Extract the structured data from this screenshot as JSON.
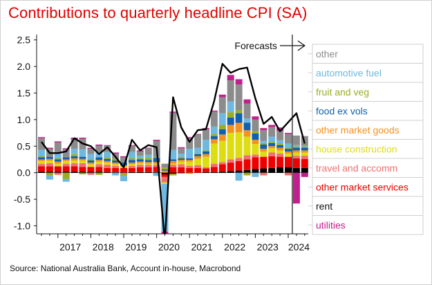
{
  "title": "Contributions to quarterly headline CPI (SA)",
  "source": "Source: National Australia Bank, Account in-house, Macrobond",
  "chart_data": {
    "type": "bar",
    "stacked": true,
    "title": "Contributions to quarterly headline CPI (SA)",
    "xlabel": "",
    "ylabel": "",
    "ylim": [
      -1.15,
      2.6
    ],
    "yticks": [
      "2.5",
      "2.0",
      "1.5",
      "1.0",
      "0.5",
      "0.0",
      "-0.5",
      "-1.0"
    ],
    "ytick_values": [
      2.5,
      2.0,
      1.5,
      1.0,
      0.5,
      0.0,
      -0.5,
      -1.0
    ],
    "year_labels": [
      "2017",
      "2018",
      "2019",
      "2020",
      "2021",
      "2022",
      "2023",
      "2024"
    ],
    "start_year": 2016,
    "start_quarter": 3,
    "forecast_label": "Forecasts",
    "forecast_start_index": 31,
    "legend": "right",
    "grid": false,
    "categories": [
      "2016Q3",
      "2016Q4",
      "2017Q1",
      "2017Q2",
      "2017Q3",
      "2017Q4",
      "2018Q1",
      "2018Q2",
      "2018Q3",
      "2018Q4",
      "2019Q1",
      "2019Q2",
      "2019Q3",
      "2019Q4",
      "2020Q1",
      "2020Q2",
      "2020Q3",
      "2020Q4",
      "2021Q1",
      "2021Q2",
      "2021Q3",
      "2021Q4",
      "2022Q1",
      "2022Q2",
      "2022Q3",
      "2022Q4",
      "2023Q1",
      "2023Q2",
      "2023Q3",
      "2023Q4",
      "2024Q1",
      "2024Q2",
      "2024Q3"
    ],
    "series": [
      {
        "name": "rent",
        "color": "#000000",
        "values": [
          0.02,
          0.02,
          0.02,
          0.02,
          0.02,
          0.02,
          0.02,
          0.02,
          0.01,
          0.01,
          0.01,
          0.01,
          0.01,
          0.01,
          0.01,
          -0.03,
          -0.02,
          -0.01,
          0.0,
          0.0,
          0.01,
          0.01,
          0.02,
          0.03,
          0.04,
          0.05,
          0.07,
          0.08,
          0.09,
          0.1,
          0.1,
          0.09,
          0.09
        ]
      },
      {
        "name": "other market services",
        "color": "#ee0000",
        "values": [
          0.1,
          0.1,
          0.1,
          0.1,
          0.1,
          0.09,
          0.09,
          0.09,
          0.08,
          0.08,
          0.08,
          0.08,
          0.09,
          0.09,
          0.1,
          -0.05,
          0.1,
          0.1,
          0.09,
          0.09,
          0.07,
          0.1,
          0.14,
          0.16,
          0.18,
          0.2,
          0.22,
          0.22,
          0.22,
          0.2,
          0.2,
          0.18,
          0.17
        ]
      },
      {
        "name": "travel and accomm",
        "color": "#f07070",
        "values": [
          0.05,
          0.06,
          -0.04,
          0.05,
          0.06,
          0.07,
          -0.04,
          0.05,
          0.06,
          0.04,
          -0.02,
          0.04,
          0.05,
          0.05,
          0.04,
          -0.1,
          0.05,
          0.06,
          0.04,
          0.05,
          0.02,
          0.06,
          0.04,
          0.06,
          0.06,
          0.08,
          0.05,
          -0.05,
          0.07,
          0.06,
          -0.05,
          0.05,
          0.06
        ]
      },
      {
        "name": "house construction",
        "color": "#dddd11",
        "values": [
          0.05,
          0.05,
          0.05,
          0.05,
          0.05,
          0.05,
          0.05,
          0.05,
          0.04,
          0.03,
          0.03,
          0.03,
          0.03,
          0.02,
          0.02,
          -0.03,
          0.02,
          0.05,
          0.08,
          0.12,
          0.2,
          0.38,
          0.4,
          0.5,
          0.48,
          0.35,
          0.2,
          0.1,
          0.08,
          0.06,
          0.06,
          0.06,
          0.06
        ]
      },
      {
        "name": "other market goods",
        "color": "#f39121",
        "values": [
          0.03,
          0.03,
          0.04,
          0.03,
          0.04,
          0.03,
          0.03,
          0.03,
          0.03,
          0.03,
          0.02,
          0.03,
          0.03,
          0.03,
          0.03,
          0.04,
          0.05,
          0.03,
          0.03,
          0.05,
          0.05,
          0.08,
          0.12,
          0.15,
          0.18,
          0.12,
          0.08,
          0.05,
          0.04,
          0.05,
          0.04,
          0.04,
          0.04
        ]
      },
      {
        "name": "food ex vols",
        "color": "#1060b0",
        "values": [
          0.04,
          0.04,
          0.04,
          0.04,
          0.04,
          0.04,
          0.04,
          0.05,
          0.04,
          0.04,
          0.05,
          0.05,
          0.04,
          0.04,
          0.08,
          0.02,
          0.03,
          0.03,
          0.03,
          0.04,
          0.05,
          0.06,
          0.1,
          0.14,
          0.18,
          0.14,
          0.12,
          0.08,
          0.06,
          0.05,
          0.05,
          0.05,
          0.05
        ]
      },
      {
        "name": "fruit and veg",
        "color": "#9aae22",
        "values": [
          0.02,
          -0.05,
          0.02,
          -0.12,
          0.04,
          -0.03,
          0.02,
          -0.04,
          0.03,
          0.03,
          -0.04,
          0.03,
          0.02,
          0.04,
          0.02,
          0.03,
          -0.03,
          0.03,
          -0.02,
          0.02,
          0.02,
          0.04,
          0.08,
          0.1,
          0.06,
          -0.05,
          0.04,
          0.03,
          0.02,
          0.03,
          0.02,
          0.02,
          0.02
        ]
      },
      {
        "name": "automotive fuel",
        "color": "#6fb8e0",
        "values": [
          0.12,
          -0.08,
          0.1,
          -0.05,
          0.1,
          0.14,
          0.1,
          0.1,
          0.1,
          -0.05,
          -0.1,
          0.12,
          0.05,
          0.06,
          -0.06,
          -0.9,
          0.18,
          0.06,
          0.18,
          0.1,
          0.2,
          0.14,
          0.22,
          0.2,
          -0.15,
          0.08,
          -0.08,
          0.04,
          0.1,
          0.06,
          0.08,
          0.03,
          0.02
        ]
      },
      {
        "name": "other",
        "color": "#8c8c8c",
        "values": [
          0.22,
          0.15,
          0.2,
          0.15,
          0.18,
          0.2,
          0.1,
          0.12,
          0.12,
          0.1,
          0.1,
          0.12,
          0.08,
          0.12,
          0.3,
          0.08,
          0.7,
          0.1,
          0.2,
          0.25,
          0.2,
          0.28,
          0.3,
          0.4,
          0.48,
          0.28,
          0.22,
          0.2,
          0.18,
          0.18,
          0.18,
          0.18,
          0.18
        ]
      },
      {
        "name": "utilities",
        "color": "#c0208c",
        "values": [
          0.02,
          0.02,
          0.02,
          0.02,
          0.03,
          0.02,
          0.02,
          0.02,
          0.01,
          0.02,
          0.02,
          0.01,
          0.02,
          0.01,
          0.02,
          -0.05,
          0.02,
          0.02,
          0.02,
          0.01,
          0.02,
          0.02,
          0.05,
          0.1,
          0.1,
          0.08,
          0.06,
          0.04,
          0.04,
          0.06,
          0.02,
          -0.58,
          -0.08
        ]
      }
    ],
    "headline": {
      "name": "headline CPI",
      "color": "#000000",
      "values": [
        0.58,
        0.37,
        0.37,
        0.4,
        0.65,
        0.55,
        0.5,
        0.35,
        0.48,
        0.3,
        0.1,
        0.62,
        0.42,
        0.52,
        0.48,
        -1.3,
        1.42,
        0.85,
        0.58,
        0.8,
        0.82,
        1.35,
        2.05,
        1.88,
        1.95,
        1.98,
        1.4,
        0.92,
        1.05,
        0.78,
        0.95,
        1.12,
        0.55
      ]
    },
    "legend_order": [
      "other",
      "automotive fuel",
      "fruit and veg",
      "food ex vols",
      "other market goods",
      "house construction",
      "travel and accomm",
      "other market services",
      "rent",
      "utilities"
    ]
  }
}
